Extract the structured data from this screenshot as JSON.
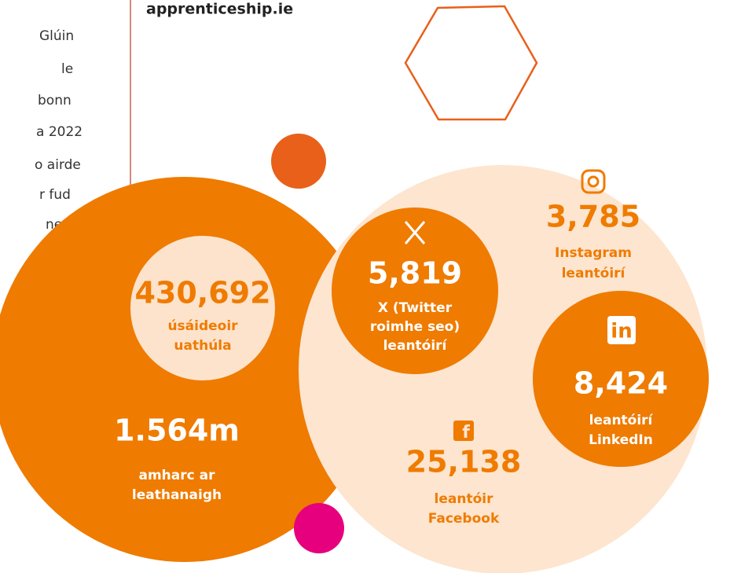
{
  "side_text": [
    "Glúin",
    "le",
    "bonn",
    "a 2022",
    "o airde",
    "r fud",
    "ne"
  ],
  "website": "apprenticeship.ie",
  "stats": {
    "users": {
      "value": "430,692",
      "label": [
        "úsáideoir",
        "uathúla"
      ]
    },
    "page_views": {
      "value": "1.564m",
      "label": [
        "amharc ar",
        "leathanaigh"
      ]
    },
    "x": {
      "value": "5,819",
      "label": [
        "X (Twitter",
        "roimhe seo)",
        "leantóirí"
      ]
    },
    "instagram": {
      "value": "3,785",
      "label": [
        "Instagram",
        "leantóirí"
      ]
    },
    "linkedin": {
      "value": "8,424",
      "label": [
        "leantóirí",
        "LinkedIn"
      ]
    },
    "facebook": {
      "value": "25,138",
      "label": [
        "leantóir",
        "Facebook"
      ]
    }
  }
}
